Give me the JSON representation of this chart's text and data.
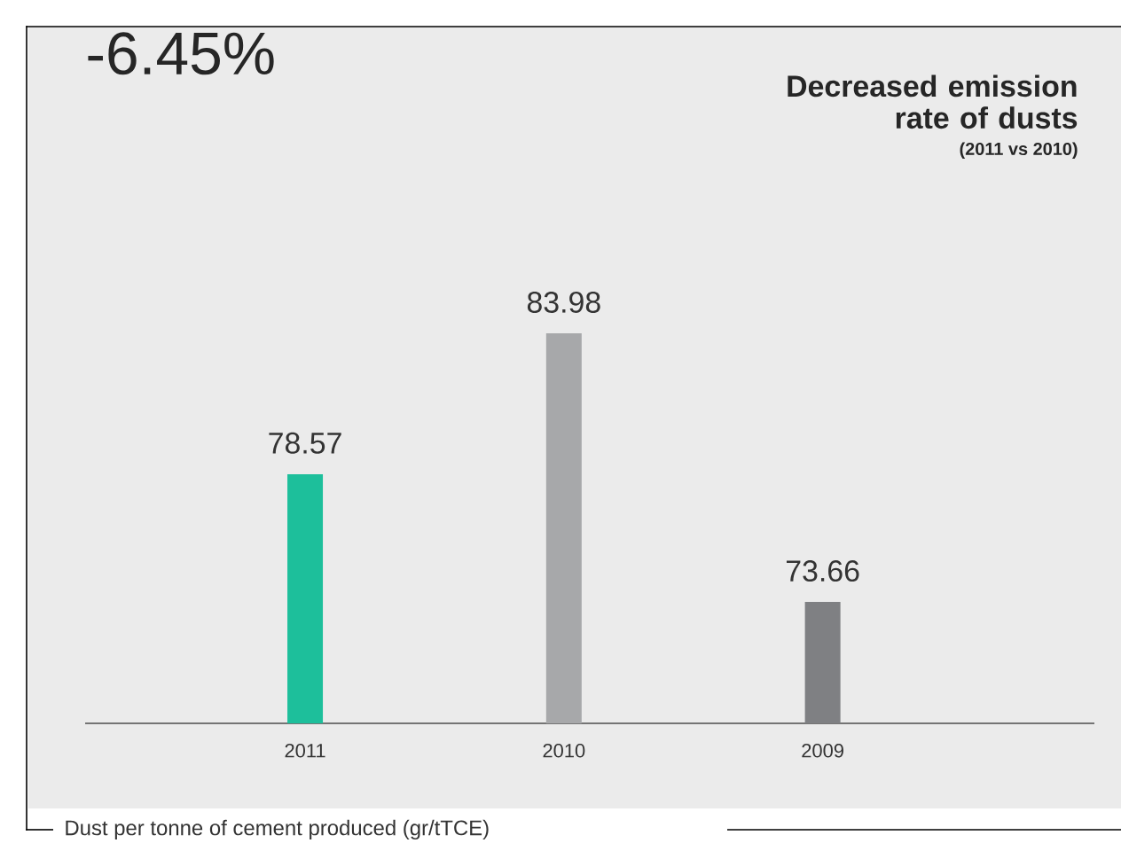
{
  "chart_data": {
    "type": "bar",
    "title": "Decreased emission rate of dusts",
    "subtitle": "(2011 vs 2010)",
    "annotations": [
      "-6.45%",
      "Dust per tonne of cement produced (gr/tTCE)"
    ],
    "categories": [
      "2011",
      "2010",
      "2009"
    ],
    "values": [
      78.57,
      83.98,
      73.66
    ],
    "colors": [
      "#1dbf9b",
      "#a7a8aa",
      "#7f8083"
    ],
    "ylim": [
      69,
      83.98
    ],
    "data_labels": true
  }
}
